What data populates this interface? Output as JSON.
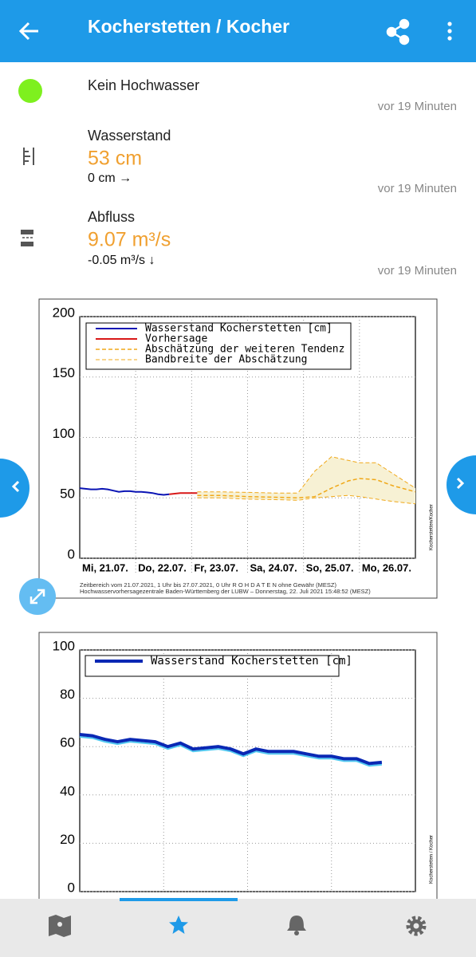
{
  "app_bar": {
    "title": "Kocherstetten / Kocher"
  },
  "status": {
    "label": "Kein Hochwasser",
    "updated": "vor 19 Minuten"
  },
  "measurements": [
    {
      "label": "Wasserstand",
      "value": "53 cm",
      "change": "0 cm →",
      "updated": "vor 19 Minuten"
    },
    {
      "label": "Abfluss",
      "value": "9.07 m³/s",
      "change": "-0.05 m³/s ↓",
      "updated": "vor 19 Minuten"
    }
  ],
  "chart_data": [
    {
      "type": "line",
      "xlim": [
        0,
        6
      ],
      "ylim": [
        0,
        200
      ],
      "yticks": [
        0,
        50,
        100,
        150,
        200
      ],
      "grid": true,
      "xticks": [
        {
          "value": 0,
          "label": "Mi, 21.07."
        },
        {
          "value": 1,
          "label": "Do, 22.07."
        },
        {
          "value": 2,
          "label": "Fr, 23.07."
        },
        {
          "value": 3,
          "label": "Sa, 24.07."
        },
        {
          "value": 4,
          "label": "So, 25.07."
        },
        {
          "value": 5,
          "label": "Mo, 26.07."
        }
      ],
      "series": [
        {
          "name": "Wasserstand Kocherstetten [cm]",
          "color": "#0a14b4",
          "line_width": 2,
          "x": [
            0,
            0.1,
            0.2,
            0.3,
            0.4,
            0.5,
            0.6,
            0.7,
            0.8,
            0.9,
            1.0,
            1.1,
            1.2,
            1.3,
            1.4,
            1.5,
            1.6
          ],
          "values": [
            58,
            57.5,
            57,
            57,
            57.5,
            57,
            56,
            55,
            55.5,
            55.5,
            55,
            55,
            54.5,
            54,
            53,
            52.5,
            53
          ]
        },
        {
          "name": "Vorhersage",
          "color": "#d81818",
          "line_width": 2,
          "x": [
            1.6,
            1.8,
            2.0,
            2.1
          ],
          "values": [
            53,
            54,
            54,
            54
          ]
        },
        {
          "name": "Abschätzung der weiteren Tendenz",
          "color": "#f0a818",
          "line_width": 1.5,
          "dashed": true,
          "x": [
            2.1,
            2.5,
            3,
            3.5,
            3.9,
            4.2,
            4.5,
            4.8,
            5,
            5.3,
            5.6,
            6
          ],
          "values": [
            52,
            52,
            51,
            50.5,
            50,
            51,
            58,
            64,
            66,
            65,
            60,
            55
          ]
        },
        {
          "name": "Bandbreite der Abschätzung",
          "color": "#f0a818",
          "line_width": 1,
          "dashed": true,
          "fill": "#f7f1d4",
          "x": [
            2.1,
            2.5,
            3,
            3.5,
            3.9,
            4.2,
            4.5,
            4.8,
            5,
            5.3,
            5.6,
            6
          ],
          "values": [
            55,
            55,
            54.5,
            54,
            54,
            72,
            84,
            81,
            79,
            79,
            70,
            58
          ],
          "lower": [
            50,
            50,
            49,
            48.5,
            48,
            50,
            51,
            52,
            51,
            49,
            47,
            45
          ]
        }
      ],
      "notes": [
        "Zeitbereich vom 21.07.2021, 1 Uhr bis 27.07.2021, 0 Uhr     R O H D A T E N ohne Gewähr (MESZ)",
        "Hochwasservorhersagezentrale Baden-Württemberg der LUBW – Donnerstag, 22. Juli 2021 15:48:52 (MESZ)"
      ],
      "side_label": "Kocherstetten/Kocher"
    },
    {
      "type": "line",
      "xlim": [
        0,
        4
      ],
      "ylim": [
        0,
        100
      ],
      "yticks": [
        0,
        20,
        40,
        60,
        80,
        100
      ],
      "grid": true,
      "xgrid": [
        1,
        2,
        3
      ],
      "series": [
        {
          "name": "Wasserstand Kocherstetten [cm]",
          "color": "#0a28b4",
          "line_width": 4,
          "halo": "#50c8f0",
          "x": [
            0,
            0.15,
            0.3,
            0.45,
            0.6,
            0.75,
            0.9,
            1.05,
            1.2,
            1.35,
            1.5,
            1.65,
            1.8,
            1.95,
            2.1,
            2.25,
            2.4,
            2.55,
            2.7,
            2.85,
            3.0,
            3.15,
            3.3,
            3.45,
            3.6
          ],
          "values": [
            65,
            64.5,
            63,
            62,
            63,
            62.5,
            62,
            60,
            61.5,
            59,
            59.5,
            60,
            59,
            57,
            59,
            58,
            58,
            58,
            57,
            56,
            56,
            55,
            55,
            53,
            53.5
          ]
        }
      ],
      "side_label": "Kocherstetten / Kocher"
    }
  ]
}
